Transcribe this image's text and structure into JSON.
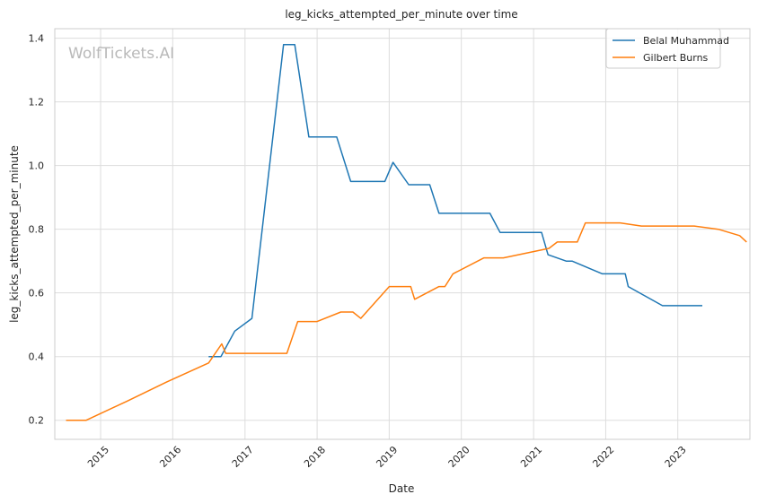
{
  "chart_data": {
    "type": "line",
    "title": "leg_kicks_attempted_per_minute over time",
    "xlabel": "Date",
    "ylabel": "leg_kicks_attempted_per_minute",
    "watermark": "WolfTickets.AI",
    "xlim": [
      "2014-05-14",
      "2024-01-01"
    ],
    "ylim": [
      0.14,
      1.43
    ],
    "x_ticks": [
      "2015",
      "2016",
      "2017",
      "2018",
      "2019",
      "2020",
      "2021",
      "2022",
      "2023"
    ],
    "y_ticks": [
      "0.2",
      "0.4",
      "0.6",
      "0.8",
      "1.0",
      "1.2",
      "1.4"
    ],
    "grid": true,
    "legend_position": "top-right",
    "series": [
      {
        "name": "Belal Muhammad",
        "color": "#1f77b4",
        "points": [
          [
            "2016-07-01",
            0.4
          ],
          [
            "2016-09-01",
            0.4
          ],
          [
            "2016-11-10",
            0.48
          ],
          [
            "2017-02-05",
            0.52
          ],
          [
            "2017-07-15",
            1.38
          ],
          [
            "2017-09-10",
            1.38
          ],
          [
            "2017-11-20",
            1.09
          ],
          [
            "2018-04-10",
            1.09
          ],
          [
            "2018-06-20",
            0.95
          ],
          [
            "2018-12-10",
            0.95
          ],
          [
            "2019-01-20",
            1.01
          ],
          [
            "2019-04-10",
            0.94
          ],
          [
            "2019-07-25",
            0.94
          ],
          [
            "2019-09-10",
            0.85
          ],
          [
            "2020-05-25",
            0.85
          ],
          [
            "2020-07-15",
            0.79
          ],
          [
            "2021-01-10",
            0.79
          ],
          [
            "2021-02-10",
            0.79
          ],
          [
            "2021-03-15",
            0.72
          ],
          [
            "2021-06-15",
            0.7
          ],
          [
            "2021-07-15",
            0.7
          ],
          [
            "2021-12-15",
            0.66
          ],
          [
            "2022-04-10",
            0.66
          ],
          [
            "2022-04-25",
            0.62
          ],
          [
            "2022-10-15",
            0.56
          ],
          [
            "2023-03-25",
            0.56
          ],
          [
            "2023-05-05",
            0.56
          ]
        ]
      },
      {
        "name": "Gilbert Burns",
        "color": "#ff7f0e",
        "points": [
          [
            "2014-07-10",
            0.2
          ],
          [
            "2014-10-20",
            0.2
          ],
          [
            "2015-05-15",
            0.26
          ],
          [
            "2015-12-01",
            0.32
          ],
          [
            "2016-07-01",
            0.38
          ],
          [
            "2016-09-05",
            0.44
          ],
          [
            "2016-09-25",
            0.41
          ],
          [
            "2017-08-01",
            0.41
          ],
          [
            "2017-09-25",
            0.51
          ],
          [
            "2018-01-01",
            0.51
          ],
          [
            "2018-05-01",
            0.54
          ],
          [
            "2018-07-01",
            0.54
          ],
          [
            "2018-08-10",
            0.52
          ],
          [
            "2019-01-01",
            0.62
          ],
          [
            "2019-04-20",
            0.62
          ],
          [
            "2019-05-10",
            0.58
          ],
          [
            "2019-09-10",
            0.62
          ],
          [
            "2019-10-10",
            0.62
          ],
          [
            "2019-11-20",
            0.66
          ],
          [
            "2020-04-25",
            0.71
          ],
          [
            "2020-08-01",
            0.71
          ],
          [
            "2021-03-20",
            0.74
          ],
          [
            "2021-05-01",
            0.76
          ],
          [
            "2021-08-10",
            0.76
          ],
          [
            "2021-09-20",
            0.82
          ],
          [
            "2022-03-15",
            0.82
          ],
          [
            "2022-07-01",
            0.81
          ],
          [
            "2023-03-25",
            0.81
          ],
          [
            "2023-07-25",
            0.8
          ],
          [
            "2023-11-10",
            0.78
          ],
          [
            "2023-12-15",
            0.76
          ]
        ]
      }
    ]
  }
}
